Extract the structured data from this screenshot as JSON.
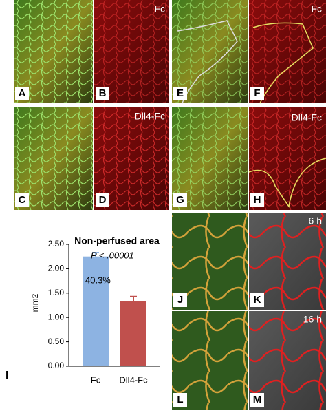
{
  "panel_labels": [
    "A",
    "B",
    "C",
    "D",
    "E",
    "F",
    "G",
    "H",
    "J",
    "K",
    "L",
    "M"
  ],
  "condition_labels": [
    "Fc",
    "Dll4-Fc",
    "Fc",
    "Dll4-Fc",
    "6 h",
    "16 h"
  ],
  "chart_data": {
    "type": "bar",
    "panel": "I",
    "title": "Non-perfused area",
    "ylabel": "mm2",
    "categories": [
      "Fc",
      "Dll4-Fc"
    ],
    "values": [
      2.25,
      1.34
    ],
    "errors": [
      0.08,
      0.09
    ],
    "colors": [
      "#8db3e2",
      "#c0504d"
    ],
    "annotations": [
      "P < .00001",
      "40.3%"
    ],
    "ylim": [
      0,
      2.5
    ],
    "yticks": [
      {
        "value": 0,
        "label": "0.00"
      },
      {
        "value": 0.5,
        "label": "0.50"
      },
      {
        "value": 1,
        "label": "1.00"
      },
      {
        "value": 1.5,
        "label": "1.50"
      },
      {
        "value": 2,
        "label": "2.00"
      },
      {
        "value": 2.5,
        "label": "2.50"
      }
    ]
  }
}
